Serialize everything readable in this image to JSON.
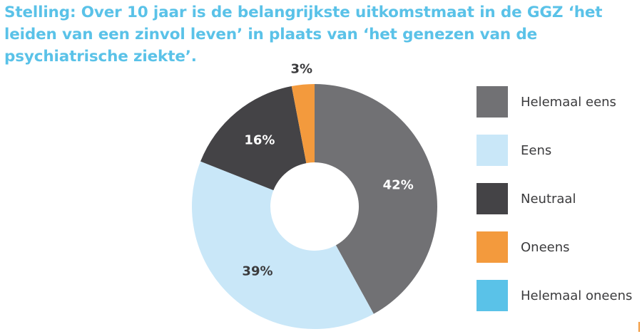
{
  "title": "Stelling: Over 10 jaar is de belangrijkste uitkomstmaat in de GGZ ‘het leiden van een zinvol leven’ in plaats van ‘het genezen van de psychiatrische ziekte’.",
  "chart_data": {
    "type": "pie",
    "donut": true,
    "title": "Stelling: Over 10 jaar is de belangrijkste uitkomstmaat in de GGZ ‘het leiden van een zinvol leven’ in plaats van ‘het genezen van de psychiatrische ziekte’.",
    "legend_position": "right",
    "slices": [
      {
        "name": "Helemaal eens",
        "value": 42,
        "label": "42%",
        "color": "#717174",
        "label_color": "#ffffff"
      },
      {
        "name": "Eens",
        "value": 39,
        "label": "39%",
        "color": "#c9e7f8",
        "label_color": "#3b3b3d"
      },
      {
        "name": "Neutraal",
        "value": 16,
        "label": "16%",
        "color": "#444346",
        "label_color": "#ffffff"
      },
      {
        "name": "Oneens",
        "value": 3,
        "label": "3%",
        "color": "#f39a3d",
        "label_color": "#3b3b3d"
      },
      {
        "name": "Helemaal oneens",
        "value": 0,
        "label": "",
        "color": "#5ac2e8",
        "label_color": "#3b3b3d"
      }
    ]
  }
}
